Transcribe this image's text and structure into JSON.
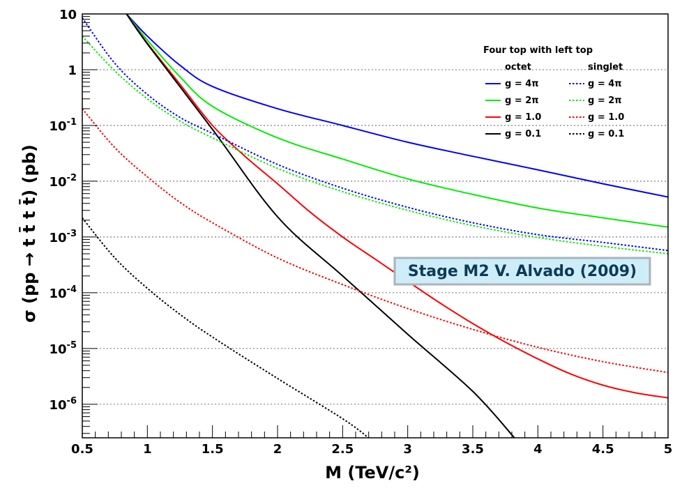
{
  "chart_data": {
    "type": "line",
    "title": "",
    "xlabel": "M (TeV/c²)",
    "ylabel": "σ (pp → t t̄ t t̄) (pb)",
    "xlim": [
      0.5,
      5.0
    ],
    "ylim": [
      2.5e-07,
      10
    ],
    "yscale": "log",
    "grid": "horizontal dotted at decades",
    "x_ticks": [
      "0.5",
      "1",
      "1.5",
      "2",
      "2.5",
      "3",
      "3.5",
      "4",
      "4.5",
      "5"
    ],
    "y_ticks": [
      {
        "base": "1",
        "exp": "0"
      },
      {
        "base": "10",
        "exp": ""
      },
      {
        "base": "1",
        "exp": ""
      },
      {
        "base": "10",
        "exp": "-1"
      },
      {
        "base": "10",
        "exp": "-2"
      },
      {
        "base": "10",
        "exp": "-3"
      },
      {
        "base": "10",
        "exp": "-4"
      },
      {
        "base": "10",
        "exp": "-5"
      },
      {
        "base": "10",
        "exp": "-6"
      }
    ],
    "legend": {
      "title": "Four top with left top",
      "placement": "top-right",
      "col_octet": "octet",
      "col_singlet": "singlet",
      "rows": [
        {
          "label": "g = 4π",
          "color": "#0000ff"
        },
        {
          "label": "g = 2π",
          "color": "#00ee00"
        },
        {
          "label": "g = 1.0",
          "color": "#ff0000"
        },
        {
          "label": "g = 0.1",
          "color": "#000000"
        }
      ]
    },
    "series": [
      {
        "name": "octet g = 4π",
        "color": "#0000ff",
        "style": "solid",
        "x": [
          0.84,
          1.0,
          1.25,
          1.5,
          2.0,
          2.5,
          3.0,
          3.5,
          4.0,
          4.5,
          5.0
        ],
        "y": [
          10,
          4.0,
          1.2,
          0.5,
          0.2,
          0.1,
          0.05,
          0.028,
          0.016,
          0.009,
          0.0052
        ]
      },
      {
        "name": "octet g = 2π",
        "color": "#00ee00",
        "style": "solid",
        "x": [
          0.84,
          1.0,
          1.25,
          1.5,
          2.0,
          2.5,
          3.0,
          3.5,
          4.0,
          4.5,
          5.0
        ],
        "y": [
          10,
          3.4,
          0.75,
          0.22,
          0.06,
          0.025,
          0.011,
          0.0058,
          0.0033,
          0.0022,
          0.0015
        ]
      },
      {
        "name": "octet g = 1.0",
        "color": "#ff0000",
        "style": "solid",
        "x": [
          0.84,
          1.0,
          1.25,
          1.5,
          1.75,
          2.0,
          2.25,
          2.5,
          2.75,
          3.0,
          3.25,
          3.5,
          3.75,
          4.0,
          4.25,
          4.5,
          4.75,
          5.0
        ],
        "y": [
          10,
          3.0,
          0.55,
          0.1,
          0.028,
          0.009,
          0.0028,
          0.001,
          0.0004,
          0.00016,
          6.5e-05,
          2.8e-05,
          1.3e-05,
          6.5e-06,
          3.5e-06,
          2.2e-06,
          1.6e-06,
          1.3e-06
        ]
      },
      {
        "name": "octet g = 0.1",
        "color": "#000000",
        "style": "solid",
        "x": [
          0.84,
          1.0,
          1.5,
          2.0,
          2.5,
          3.0,
          3.5,
          3.82
        ],
        "y": [
          10,
          2.9,
          0.085,
          0.0023,
          0.0002,
          1.8e-05,
          1.7e-06,
          2.5e-07
        ]
      },
      {
        "name": "singlet g = 4π",
        "color": "#0000ff",
        "style": "dotted",
        "x": [
          0.5,
          0.75,
          1.0,
          1.25,
          1.5,
          2.0,
          2.5,
          3.0,
          3.5,
          4.0,
          4.5,
          5.0
        ],
        "y": [
          8.5,
          1.3,
          0.36,
          0.14,
          0.072,
          0.02,
          0.0075,
          0.0034,
          0.0018,
          0.0011,
          0.0008,
          0.00057
        ]
      },
      {
        "name": "singlet g = 2π",
        "color": "#00ee00",
        "style": "dotted",
        "x": [
          0.5,
          0.75,
          1.0,
          1.25,
          1.5,
          2.0,
          2.5,
          3.0,
          3.5,
          4.0,
          4.5,
          5.0
        ],
        "y": [
          4.0,
          0.95,
          0.3,
          0.12,
          0.06,
          0.017,
          0.0065,
          0.003,
          0.0016,
          0.00098,
          0.00068,
          0.0005
        ]
      },
      {
        "name": "singlet g = 1.0",
        "color": "#ff0000",
        "style": "dotted",
        "x": [
          0.5,
          0.75,
          1.0,
          1.25,
          1.5,
          2.0,
          2.5,
          3.0,
          3.5,
          4.0,
          4.5,
          5.0
        ],
        "y": [
          0.2,
          0.04,
          0.012,
          0.0042,
          0.0018,
          0.00042,
          0.00014,
          5.2e-05,
          2.2e-05,
          1.05e-05,
          5.8e-06,
          3.7e-06
        ]
      },
      {
        "name": "singlet g = 0.1",
        "color": "#000000",
        "style": "dotted",
        "x": [
          0.5,
          0.75,
          1.0,
          1.25,
          1.5,
          2.0,
          2.5,
          2.7
        ],
        "y": [
          0.0022,
          0.00042,
          0.00012,
          4.1e-05,
          1.6e-05,
          2.9e-06,
          5.5e-07,
          2.5e-07
        ]
      }
    ]
  },
  "stamp": {
    "text": "Stage M2 V. Alvado (2009)",
    "bg": "#cdeef9",
    "border": "#a9b4bc"
  }
}
